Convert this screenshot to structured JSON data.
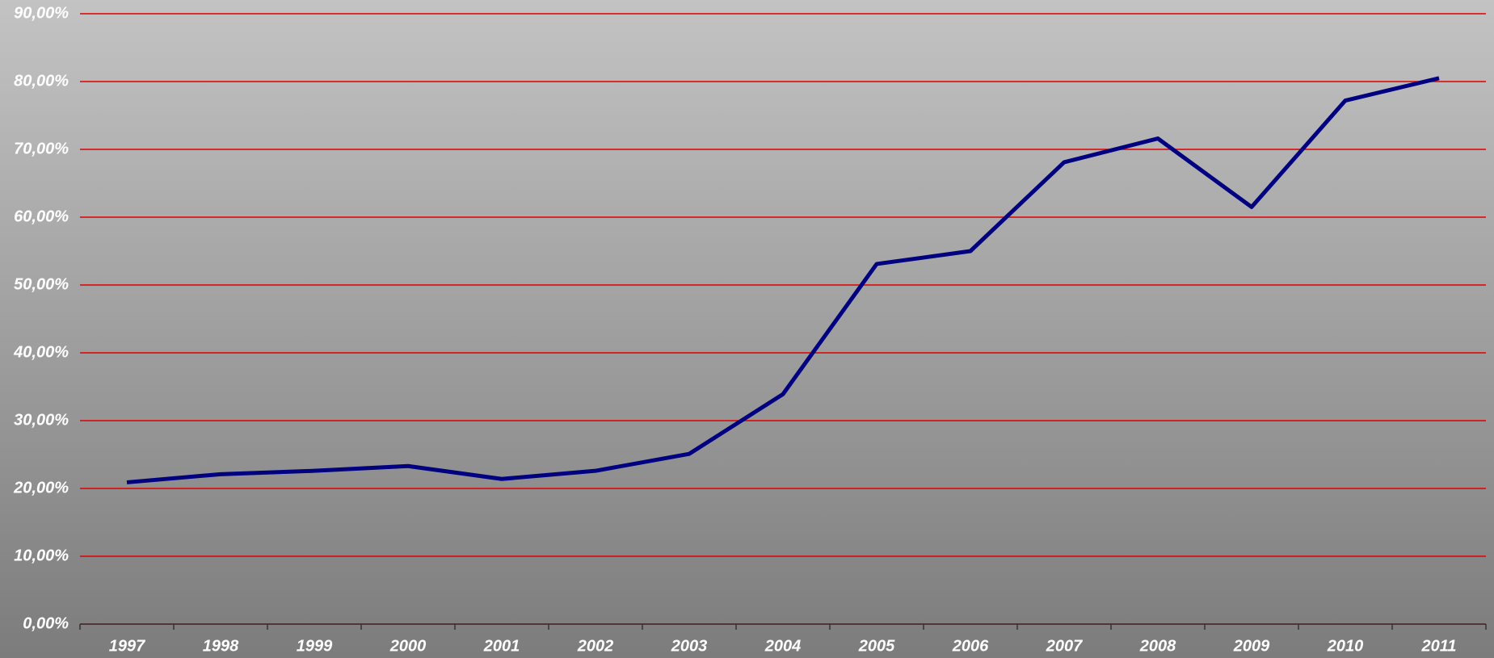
{
  "chart_data": {
    "type": "line",
    "categories": [
      "1997",
      "1998",
      "1999",
      "2000",
      "2001",
      "2002",
      "2003",
      "2004",
      "2005",
      "2006",
      "2007",
      "2008",
      "2009",
      "2010",
      "2011"
    ],
    "series": [
      {
        "color": "#000080",
        "values": [
          20.9,
          22.1,
          22.6,
          23.3,
          21.4,
          22.6,
          25.1,
          33.9,
          53.1,
          55.0,
          68.1,
          71.6,
          61.5,
          77.2,
          80.5
        ]
      }
    ],
    "ylim": [
      0,
      90
    ],
    "yticks": [
      {
        "value": 0,
        "label": "0,00%"
      },
      {
        "value": 10,
        "label": "10,00%"
      },
      {
        "value": 20,
        "label": "20,00%"
      },
      {
        "value": 30,
        "label": "30,00%"
      },
      {
        "value": 40,
        "label": "40,00%"
      },
      {
        "value": 50,
        "label": "50,00%"
      },
      {
        "value": 60,
        "label": "60,00%"
      },
      {
        "value": 70,
        "label": "70,00%"
      },
      {
        "value": 80,
        "label": "80,00%"
      },
      {
        "value": 90,
        "label": "90,00%"
      }
    ],
    "grid": true,
    "grid_color": "#e00000"
  }
}
